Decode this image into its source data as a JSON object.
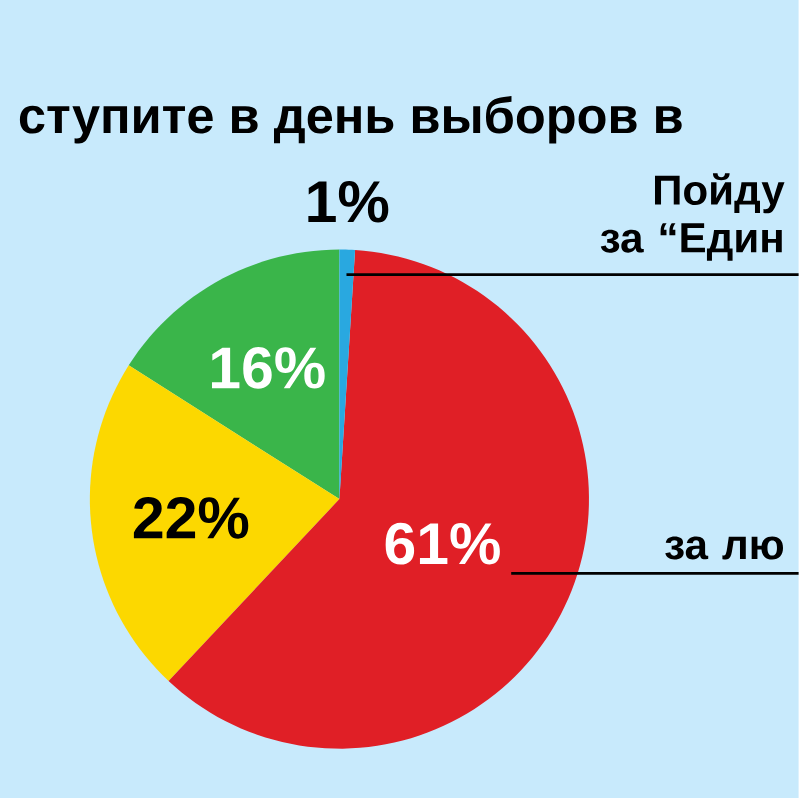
{
  "chart_data": {
    "type": "pie",
    "title": "ступите в день выборов в",
    "categories": [
      null,
      null,
      "за лю",
      "Пойду за “Един"
    ],
    "values": [
      16,
      22,
      61,
      1
    ],
    "value_labels": [
      "16%",
      "22%",
      "61%",
      "1%"
    ],
    "colors": [
      "#3ab54a",
      "#fcd800",
      "#e01f26",
      "#29a8e0"
    ]
  }
}
